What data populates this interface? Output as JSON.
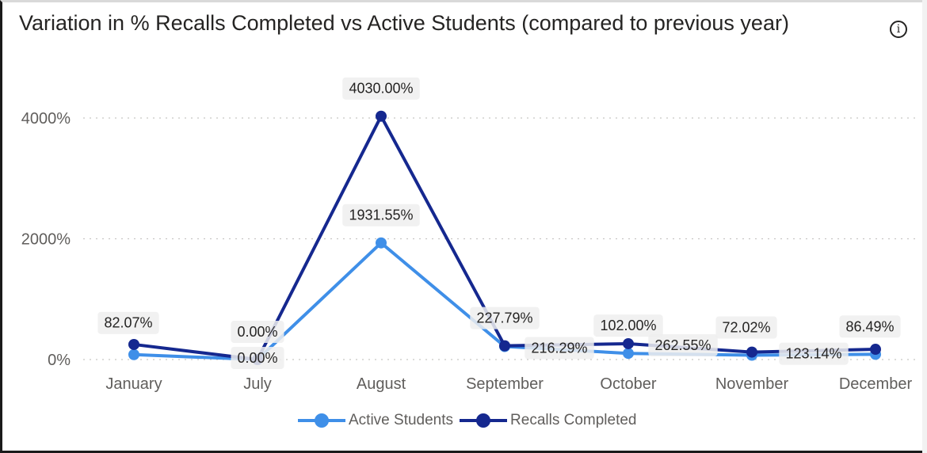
{
  "title": "Variation in % Recalls Completed vs Active Students (compared to previous year)",
  "info_icon": "info-icon",
  "chart_data": {
    "type": "line",
    "title": "Variation in % Recalls Completed vs Active Students (compared to previous year)",
    "categories": [
      "January",
      "July",
      "August",
      "September",
      "October",
      "November",
      "December"
    ],
    "y_ticks": [
      "0%",
      "2000%",
      "4000%"
    ],
    "y_tick_values": [
      0,
      2000,
      4000
    ],
    "ylim": [
      -100,
      4450
    ],
    "grid": true,
    "legend_position": "bottom-center",
    "series": [
      {
        "name": "Active Students",
        "color": "#3f8fe8",
        "values": [
          82.07,
          0.0,
          1931.55,
          216.29,
          102.0,
          72.02,
          86.49
        ],
        "labels": [
          "82.07%",
          "0.00%",
          "1931.55%",
          "216.29%",
          "102.00%",
          "72.02%",
          "86.49%"
        ]
      },
      {
        "name": "Recalls Completed",
        "color": "#15288f",
        "values": [
          250,
          0.0,
          4030.0,
          227.79,
          262.55,
          123.14,
          170
        ],
        "labels": [
          "",
          "0.00%",
          "4030.00%",
          "227.79%",
          "262.55%",
          "123.14%",
          ""
        ]
      }
    ]
  }
}
